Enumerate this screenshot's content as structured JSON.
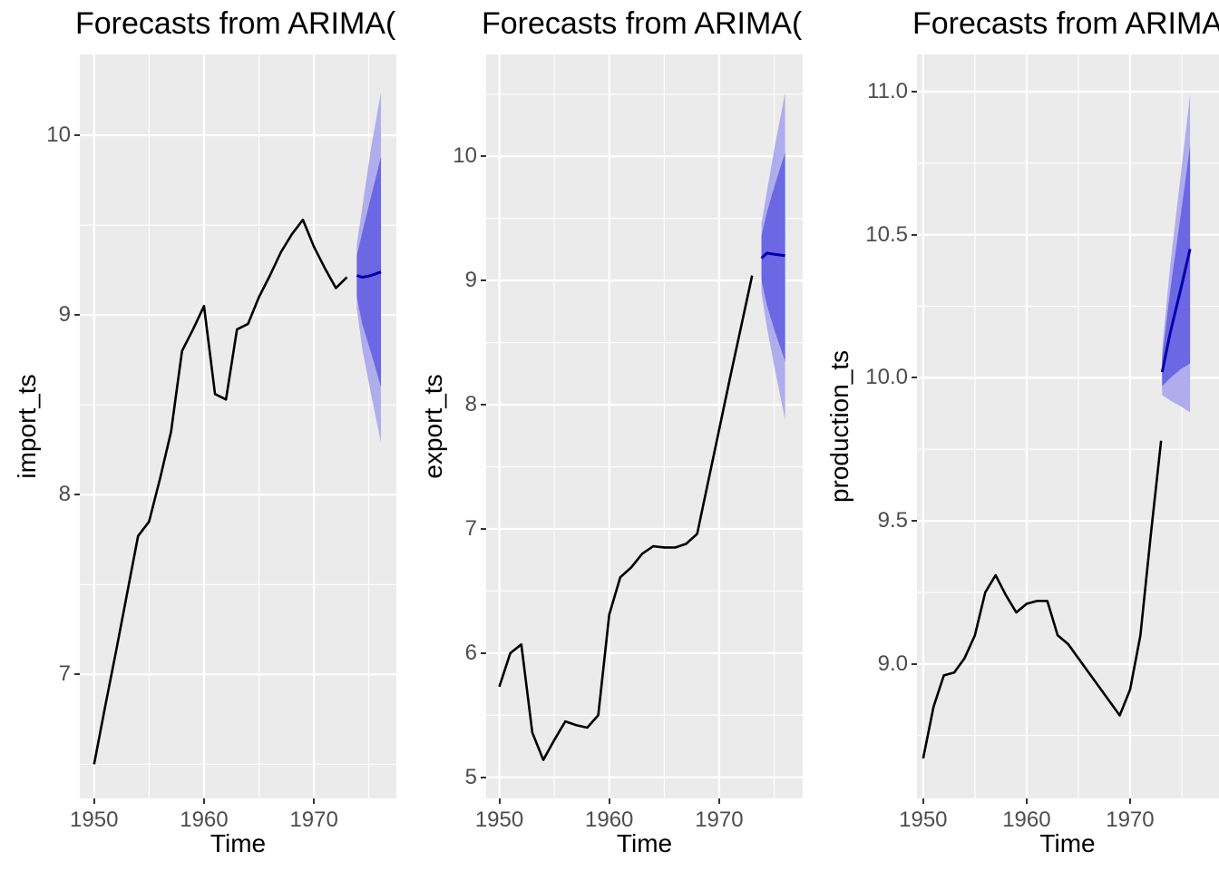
{
  "style": {
    "panel_bg": "#EBEBEB",
    "grid_color": "#FFFFFF",
    "observed_color": "#000000",
    "mean_color": "#0000AA",
    "band80_color": "#6C67E2",
    "band95_color": "#AFADEC",
    "tick_text_color": "#4D4D4D",
    "tick_mark_color": "#333333"
  },
  "chart_data": [
    {
      "type": "line",
      "title": "Forecasts from ARIMA(",
      "xlabel": "Time",
      "ylabel": "import_ts",
      "x_ticks": [
        1950,
        1960,
        1970
      ],
      "x_tick_labels": [
        "1950",
        "1960",
        "1970"
      ],
      "x_minor": [
        1955,
        1965,
        1975
      ],
      "y_ticks": [
        10,
        9,
        8,
        7
      ],
      "y_tick_labels": [
        "10",
        "9",
        "8",
        "7"
      ],
      "y_minor": [
        6.5,
        7.5,
        8.5,
        9.5
      ],
      "xlim": [
        1948.7,
        1977.5
      ],
      "ylim": [
        6.31,
        10.45
      ],
      "grid": true,
      "legend": "none",
      "x": [
        1950,
        1951,
        1952,
        1953,
        1954,
        1955,
        1956,
        1957,
        1958,
        1959,
        1960,
        1961,
        1962,
        1963,
        1964,
        1965,
        1966,
        1967,
        1968,
        1969,
        1970,
        1971,
        1972,
        1973
      ],
      "observed": [
        6.5,
        6.82,
        7.13,
        7.45,
        7.77,
        7.85,
        8.09,
        8.35,
        8.8,
        8.92,
        9.05,
        8.56,
        8.53,
        8.92,
        8.95,
        9.1,
        9.22,
        9.35,
        9.45,
        9.53,
        9.38,
        9.26,
        9.15,
        9.21
      ],
      "forecast": {
        "x": [
          1973.9,
          1974.4,
          1975.2,
          1976.1
        ],
        "mean": [
          9.22,
          9.21,
          9.22,
          9.24
        ],
        "lo80": [
          9.1,
          8.95,
          8.79,
          8.6
        ],
        "hi80": [
          9.33,
          9.46,
          9.66,
          9.88
        ],
        "lo95": [
          9.04,
          8.81,
          8.56,
          8.29
        ],
        "hi95": [
          9.39,
          9.6,
          9.93,
          10.24
        ]
      }
    },
    {
      "type": "line",
      "title": "Forecasts from ARIMA(",
      "xlabel": "Time",
      "ylabel": "export_ts",
      "x_ticks": [
        1950,
        1960,
        1970
      ],
      "x_tick_labels": [
        "1950",
        "1960",
        "1970"
      ],
      "x_minor": [
        1955,
        1965,
        1975
      ],
      "y_ticks": [
        10,
        9,
        8,
        7,
        6,
        5
      ],
      "y_tick_labels": [
        "10",
        "9",
        "8",
        "7",
        "6",
        "5"
      ],
      "y_minor": [
        5.5,
        6.5,
        7.5,
        8.5,
        9.5,
        10.5
      ],
      "xlim": [
        1948.8,
        1977.6
      ],
      "ylim": [
        4.83,
        10.82
      ],
      "grid": true,
      "legend": "none",
      "x": [
        1950,
        1951,
        1952,
        1953,
        1954,
        1955,
        1956,
        1957,
        1958,
        1959,
        1960,
        1961,
        1962,
        1963,
        1964,
        1965,
        1966,
        1967,
        1968,
        1969,
        1970,
        1971,
        1972,
        1973
      ],
      "observed": [
        5.73,
        6.0,
        6.07,
        5.36,
        5.14,
        5.3,
        5.45,
        5.42,
        5.4,
        5.5,
        6.31,
        6.61,
        6.69,
        6.8,
        6.86,
        6.85,
        6.85,
        6.88,
        6.96,
        7.38,
        7.8,
        8.22,
        8.63,
        9.04
      ],
      "forecast": {
        "x": [
          1973.85,
          1974.35,
          1975.1,
          1976.0
        ],
        "mean": [
          9.18,
          9.22,
          9.21,
          9.2
        ],
        "lo80": [
          9.0,
          8.8,
          8.58,
          8.35
        ],
        "hi80": [
          9.36,
          9.55,
          9.78,
          10.03
        ],
        "lo95": [
          8.9,
          8.62,
          8.27,
          7.88
        ],
        "hi95": [
          9.46,
          9.72,
          10.1,
          10.51
        ]
      }
    },
    {
      "type": "line",
      "title": "Forecasts from ARIMA",
      "xlabel": "Time",
      "ylabel": "production_ts",
      "x_ticks": [
        1950,
        1960,
        1970
      ],
      "x_tick_labels": [
        "1950",
        "1960",
        "1970"
      ],
      "x_minor": [
        1955,
        1965,
        1975
      ],
      "y_ticks": [
        11.0,
        10.5,
        10.0,
        9.5,
        9.0
      ],
      "y_tick_labels": [
        "11.0",
        "10.5",
        "10.0",
        "9.5",
        "9.0"
      ],
      "y_minor": [
        8.75,
        9.25,
        9.75,
        10.25,
        10.75
      ],
      "xlim": [
        1949.4,
        1980.0
      ],
      "ylim": [
        8.53,
        11.13
      ],
      "grid": true,
      "legend": "none",
      "x": [
        1950,
        1951,
        1952,
        1953,
        1954,
        1955,
        1956,
        1957,
        1958,
        1959,
        1960,
        1961,
        1962,
        1963,
        1964,
        1965,
        1966,
        1967,
        1968,
        1969,
        1970,
        1971,
        1972,
        1973
      ],
      "observed": [
        8.67,
        8.85,
        8.96,
        8.97,
        9.02,
        9.1,
        9.25,
        9.31,
        9.24,
        9.18,
        9.21,
        9.22,
        9.22,
        9.1,
        9.07,
        9.02,
        8.97,
        8.92,
        8.87,
        8.82,
        8.91,
        9.1,
        9.45,
        9.78
      ],
      "forecast": {
        "x": [
          1973.1,
          1973.9,
          1974.9,
          1975.8
        ],
        "mean": [
          10.02,
          10.16,
          10.31,
          10.45
        ],
        "lo80": [
          9.97,
          10.0,
          10.03,
          10.05
        ],
        "hi80": [
          10.07,
          10.31,
          10.57,
          10.81
        ],
        "lo95": [
          9.94,
          9.92,
          9.9,
          9.88
        ],
        "hi95": [
          10.1,
          10.4,
          10.71,
          10.99
        ]
      }
    }
  ]
}
